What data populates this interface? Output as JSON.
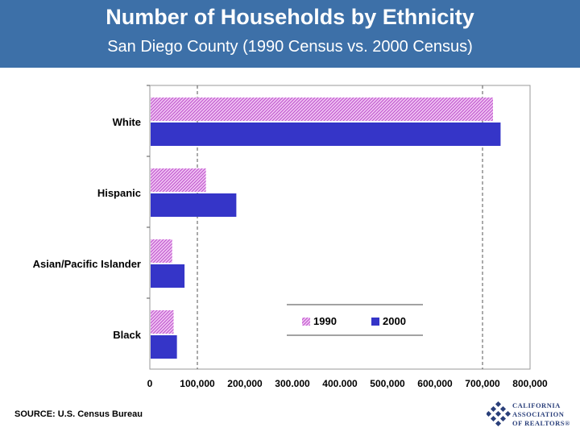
{
  "header": {
    "title": "Number of Households by Ethnicity",
    "subtitle": "San Diego County (1990 Census vs. 2000 Census)"
  },
  "source": "SOURCE: U.S. Census Bureau",
  "logo": {
    "line1": "CALIFORNIA",
    "line2": "ASSOCIATION",
    "line3": "OF REALTORS",
    "mark": "®"
  },
  "colors": {
    "header_bg": "#3d70a8",
    "series_1990": "#d98ee0",
    "series_2000": "#3535c8"
  },
  "chart_data": {
    "type": "bar",
    "orientation": "horizontal",
    "categories": [
      "White",
      "Hispanic",
      "Asian/Pacific Islander",
      "Black"
    ],
    "series": [
      {
        "name": "1990",
        "values": [
          722000,
          118000,
          47000,
          50000
        ],
        "pattern": "hatched"
      },
      {
        "name": "2000",
        "values": [
          738000,
          182000,
          73000,
          57000
        ],
        "pattern": "solid"
      }
    ],
    "xlim": [
      0,
      800000
    ],
    "xticks": [
      0,
      100000,
      200000,
      300000,
      400000,
      500000,
      600000,
      700000,
      800000
    ],
    "xtick_labels": [
      "0",
      "100,000",
      "200,000",
      "300.000",
      "400.000",
      "500,000",
      "600,000",
      "700,000",
      "800,000"
    ],
    "gridlines": [
      100000,
      700000
    ],
    "legend_position": "bottom-right",
    "title": "",
    "xlabel": "",
    "ylabel": ""
  }
}
